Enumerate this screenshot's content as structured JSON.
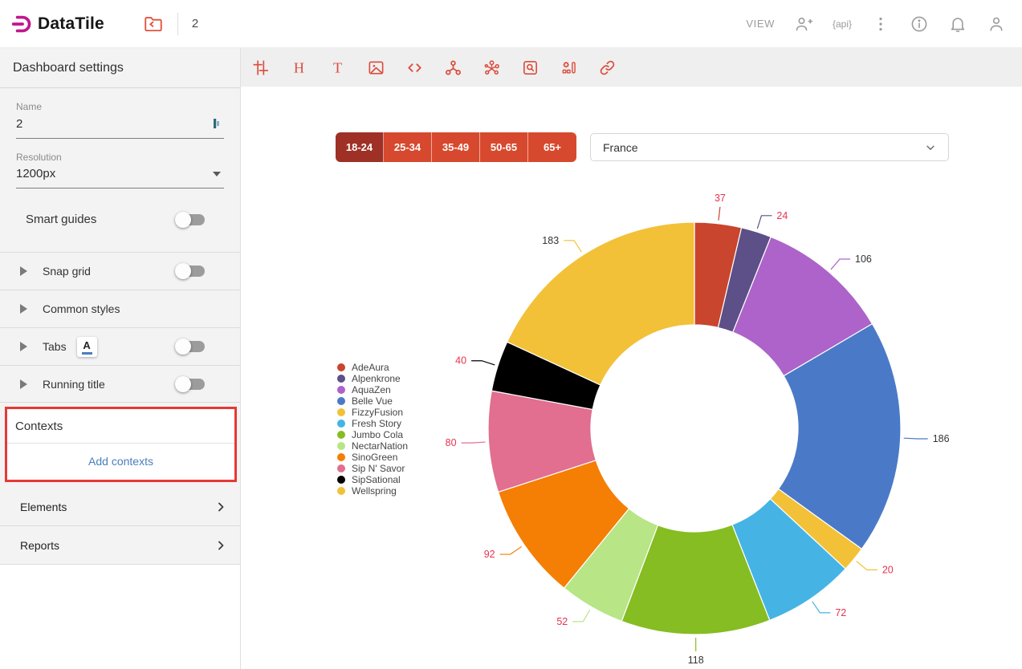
{
  "header": {
    "logo_text": "DataTile",
    "workspace_number": "2",
    "view_label": "VIEW",
    "api_icon_text": "{api}",
    "right_icons": [
      "add-user-icon",
      "api-icon",
      "kebab-menu-icon",
      "info-icon",
      "notifications-icon",
      "account-icon"
    ]
  },
  "sidebar": {
    "title": "Dashboard settings",
    "name_field": {
      "label": "Name",
      "value": "2"
    },
    "resolution_field": {
      "label": "Resolution",
      "value": "1200px"
    },
    "smart_guides": {
      "label": "Smart guides",
      "on": false
    },
    "sections": {
      "snap_grid": {
        "label": "Snap grid",
        "on": false
      },
      "common_styles": {
        "label": "Common styles"
      },
      "tabs": {
        "label": "Tabs",
        "on": false
      },
      "running_title": {
        "label": "Running title",
        "on": false
      }
    },
    "contexts": {
      "title": "Contexts",
      "action_label": "Add contexts",
      "highlight_color": "#e53935"
    },
    "nav": {
      "elements": "Elements",
      "reports": "Reports"
    }
  },
  "toolbar": {
    "icons": [
      "tune-icon",
      "heading-icon",
      "text-icon",
      "image-icon",
      "code-icon",
      "share-nodes-icon",
      "cluster-icon",
      "search-box-icon",
      "widget-settings-icon",
      "link-icon"
    ],
    "icon_color": "#dc4c3c"
  },
  "filters": {
    "age_groups": {
      "options": [
        "18-24",
        "25-34",
        "35-49",
        "50-65",
        "65+"
      ],
      "selected": "18-24"
    },
    "country": {
      "value": "France"
    }
  },
  "chart_data": {
    "type": "pie",
    "subtype": "donut",
    "title": "",
    "legend_position": "left",
    "start": "top",
    "direction": "clockwise",
    "total": 1010,
    "series": [
      {
        "name": "AdeAura",
        "value": 37,
        "color": "#c9452d",
        "label_color": "#e5334d"
      },
      {
        "name": "Alpenkrone",
        "value": 24,
        "color": "#5d4f87",
        "label_color": "#e5334d"
      },
      {
        "name": "AquaZen",
        "value": 106,
        "color": "#ad63c9",
        "label_color": "#333333"
      },
      {
        "name": "Belle Vue",
        "value": 186,
        "color": "#4a7ac7",
        "label_color": "#333333"
      },
      {
        "name": "FizzyFusion",
        "value": 20,
        "color": "#f2c138",
        "label_color": "#e5334d"
      },
      {
        "name": "Fresh Story",
        "value": 72,
        "color": "#45b4e5",
        "label_color": "#e5334d"
      },
      {
        "name": "Jumbo Cola",
        "value": 118,
        "color": "#85bd22",
        "label_color": "#333333"
      },
      {
        "name": "NectarNation",
        "value": 52,
        "color": "#b8e586",
        "label_color": "#e5334d"
      },
      {
        "name": "SinoGreen",
        "value": 92,
        "color": "#f57e04",
        "label_color": "#e5334d"
      },
      {
        "name": "Sip N' Savor",
        "value": 80,
        "color": "#e26e90",
        "label_color": "#e5334d"
      },
      {
        "name": "SipSational",
        "value": 40,
        "color": "#000000",
        "label_color": "#e5334d"
      },
      {
        "name": "Wellspring",
        "value": 183,
        "color": "#f2c138",
        "label_color": "#333333"
      }
    ]
  }
}
